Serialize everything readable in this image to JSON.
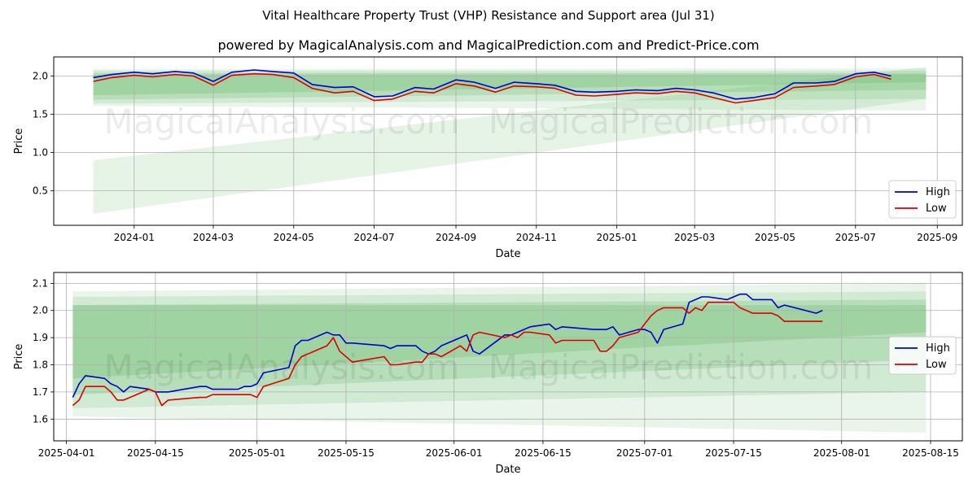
{
  "title": "Vital Healthcare Property Trust (VHP) Resistance and Support area (Jul 31)",
  "subtitle": "powered by MagicalAnalysis.com and MagicalPrediction.com and Predict-Price.com",
  "watermarks": [
    "MagicalAnalysis.com",
    "MagicalPrediction.com"
  ],
  "colors": {
    "high": "#0000cc",
    "low": "#dd0000",
    "band": "#4caf50",
    "grid": "#b0b0b0"
  },
  "chart_data": [
    {
      "type": "line",
      "xlabel": "Date",
      "ylabel": "Price",
      "x_ticks": [
        "2024-01",
        "2024-03",
        "2024-05",
        "2024-07",
        "2024-09",
        "2024-11",
        "2025-01",
        "2025-03",
        "2025-05",
        "2025-07",
        "2025-09"
      ],
      "y_ticks": [
        "0.5",
        "1.0",
        "1.5",
        "2.0"
      ],
      "xlim": [
        "2023-11-01",
        "2025-09-20"
      ],
      "ylim": [
        0.05,
        2.25
      ],
      "grid": true,
      "legend": "bottom-right",
      "series": [
        {
          "name": "High",
          "color": "#0000cc",
          "x": [
            "2023-12-01",
            "2023-12-15",
            "2024-01-01",
            "2024-01-15",
            "2024-02-01",
            "2024-02-15",
            "2024-03-01",
            "2024-03-15",
            "2024-04-01",
            "2024-04-15",
            "2024-05-01",
            "2024-05-15",
            "2024-06-01",
            "2024-06-15",
            "2024-07-01",
            "2024-07-15",
            "2024-08-01",
            "2024-08-15",
            "2024-09-01",
            "2024-09-15",
            "2024-10-01",
            "2024-10-15",
            "2024-11-01",
            "2024-11-15",
            "2024-12-01",
            "2024-12-15",
            "2025-01-01",
            "2025-01-15",
            "2025-02-01",
            "2025-02-15",
            "2025-03-01",
            "2025-03-15",
            "2025-04-01",
            "2025-04-15",
            "2025-05-01",
            "2025-05-15",
            "2025-06-01",
            "2025-06-15",
            "2025-07-01",
            "2025-07-15",
            "2025-07-28"
          ],
          "values": [
            1.98,
            2.02,
            2.05,
            2.03,
            2.06,
            2.04,
            1.93,
            2.05,
            2.08,
            2.06,
            2.04,
            1.89,
            1.85,
            1.86,
            1.73,
            1.74,
            1.85,
            1.83,
            1.95,
            1.92,
            1.84,
            1.92,
            1.9,
            1.88,
            1.8,
            1.79,
            1.8,
            1.82,
            1.81,
            1.84,
            1.82,
            1.78,
            1.7,
            1.72,
            1.77,
            1.91,
            1.91,
            1.93,
            2.03,
            2.05,
            2.0
          ]
        },
        {
          "name": "Low",
          "color": "#dd0000",
          "x": [
            "2023-12-01",
            "2023-12-15",
            "2024-01-01",
            "2024-01-15",
            "2024-02-01",
            "2024-02-15",
            "2024-03-01",
            "2024-03-15",
            "2024-04-01",
            "2024-04-15",
            "2024-05-01",
            "2024-05-15",
            "2024-06-01",
            "2024-06-15",
            "2024-07-01",
            "2024-07-15",
            "2024-08-01",
            "2024-08-15",
            "2024-09-01",
            "2024-09-15",
            "2024-10-01",
            "2024-10-15",
            "2024-11-01",
            "2024-11-15",
            "2024-12-01",
            "2024-12-15",
            "2025-01-01",
            "2025-01-15",
            "2025-02-01",
            "2025-02-15",
            "2025-03-01",
            "2025-03-15",
            "2025-04-01",
            "2025-04-15",
            "2025-05-01",
            "2025-05-15",
            "2025-06-01",
            "2025-06-15",
            "2025-07-01",
            "2025-07-15",
            "2025-07-28"
          ],
          "values": [
            1.93,
            1.98,
            2.01,
            1.99,
            2.02,
            2.0,
            1.88,
            2.01,
            2.03,
            2.02,
            1.98,
            1.84,
            1.78,
            1.8,
            1.68,
            1.7,
            1.8,
            1.78,
            1.9,
            1.87,
            1.79,
            1.87,
            1.86,
            1.84,
            1.75,
            1.74,
            1.76,
            1.78,
            1.77,
            1.8,
            1.78,
            1.72,
            1.65,
            1.68,
            1.72,
            1.85,
            1.87,
            1.89,
            1.99,
            2.02,
            1.96
          ]
        }
      ]
    },
    {
      "type": "line",
      "xlabel": "Date",
      "ylabel": "Price",
      "x_ticks": [
        "2025-04-01",
        "2025-04-15",
        "2025-05-01",
        "2025-05-15",
        "2025-06-01",
        "2025-06-15",
        "2025-07-01",
        "2025-07-15",
        "2025-08-01",
        "2025-08-15"
      ],
      "y_ticks": [
        "1.6",
        "1.7",
        "1.8",
        "1.9",
        "2.0",
        "2.1"
      ],
      "xlim": [
        "2025-03-30",
        "2025-08-20"
      ],
      "ylim": [
        1.52,
        2.14
      ],
      "grid": true,
      "legend": "center-right",
      "series": [
        {
          "name": "High",
          "color": "#0000cc",
          "x": [
            "2025-04-02",
            "2025-04-03",
            "2025-04-04",
            "2025-04-07",
            "2025-04-08",
            "2025-04-09",
            "2025-04-10",
            "2025-04-11",
            "2025-04-14",
            "2025-04-15",
            "2025-04-16",
            "2025-04-17",
            "2025-04-22",
            "2025-04-23",
            "2025-04-24",
            "2025-04-28",
            "2025-04-29",
            "2025-04-30",
            "2025-05-01",
            "2025-05-02",
            "2025-05-06",
            "2025-05-07",
            "2025-05-08",
            "2025-05-09",
            "2025-05-12",
            "2025-05-13",
            "2025-05-14",
            "2025-05-15",
            "2025-05-16",
            "2025-05-21",
            "2025-05-22",
            "2025-05-23",
            "2025-05-26",
            "2025-05-27",
            "2025-05-28",
            "2025-05-29",
            "2025-05-30",
            "2025-06-02",
            "2025-06-03",
            "2025-06-04",
            "2025-06-05",
            "2025-06-09",
            "2025-06-10",
            "2025-06-11",
            "2025-06-12",
            "2025-06-13",
            "2025-06-16",
            "2025-06-17",
            "2025-06-18",
            "2025-06-23",
            "2025-06-24",
            "2025-06-25",
            "2025-06-26",
            "2025-06-27",
            "2025-06-30",
            "2025-07-01",
            "2025-07-02",
            "2025-07-03",
            "2025-07-04",
            "2025-07-07",
            "2025-07-08",
            "2025-07-09",
            "2025-07-10",
            "2025-07-11",
            "2025-07-14",
            "2025-07-15",
            "2025-07-16",
            "2025-07-17",
            "2025-07-18",
            "2025-07-21",
            "2025-07-22",
            "2025-07-23",
            "2025-07-28",
            "2025-07-29"
          ],
          "values": [
            1.68,
            1.73,
            1.76,
            1.75,
            1.73,
            1.72,
            1.7,
            1.72,
            1.71,
            1.7,
            1.7,
            1.7,
            1.72,
            1.72,
            1.71,
            1.71,
            1.72,
            1.72,
            1.73,
            1.77,
            1.79,
            1.87,
            1.89,
            1.89,
            1.92,
            1.91,
            1.91,
            1.88,
            1.88,
            1.87,
            1.86,
            1.87,
            1.87,
            1.85,
            1.84,
            1.85,
            1.87,
            1.9,
            1.91,
            1.85,
            1.84,
            1.91,
            1.91,
            1.92,
            1.93,
            1.94,
            1.95,
            1.93,
            1.94,
            1.93,
            1.93,
            1.93,
            1.94,
            1.91,
            1.93,
            1.93,
            1.92,
            1.88,
            1.93,
            1.95,
            2.03,
            2.04,
            2.05,
            2.05,
            2.04,
            2.05,
            2.06,
            2.06,
            2.04,
            2.04,
            2.01,
            2.02,
            1.99,
            2.0
          ]
        },
        {
          "name": "Low",
          "color": "#dd0000",
          "x": [
            "2025-04-02",
            "2025-04-03",
            "2025-04-04",
            "2025-04-07",
            "2025-04-08",
            "2025-04-09",
            "2025-04-10",
            "2025-04-11",
            "2025-04-14",
            "2025-04-15",
            "2025-04-16",
            "2025-04-17",
            "2025-04-22",
            "2025-04-23",
            "2025-04-24",
            "2025-04-28",
            "2025-04-29",
            "2025-04-30",
            "2025-05-01",
            "2025-05-02",
            "2025-05-06",
            "2025-05-07",
            "2025-05-08",
            "2025-05-09",
            "2025-05-12",
            "2025-05-13",
            "2025-05-14",
            "2025-05-15",
            "2025-05-16",
            "2025-05-21",
            "2025-05-22",
            "2025-05-23",
            "2025-05-26",
            "2025-05-27",
            "2025-05-28",
            "2025-05-29",
            "2025-05-30",
            "2025-06-02",
            "2025-06-03",
            "2025-06-04",
            "2025-06-05",
            "2025-06-09",
            "2025-06-10",
            "2025-06-11",
            "2025-06-12",
            "2025-06-13",
            "2025-06-16",
            "2025-06-17",
            "2025-06-18",
            "2025-06-23",
            "2025-06-24",
            "2025-06-25",
            "2025-06-26",
            "2025-06-27",
            "2025-06-30",
            "2025-07-01",
            "2025-07-02",
            "2025-07-03",
            "2025-07-04",
            "2025-07-07",
            "2025-07-08",
            "2025-07-09",
            "2025-07-10",
            "2025-07-11",
            "2025-07-14",
            "2025-07-15",
            "2025-07-16",
            "2025-07-17",
            "2025-07-18",
            "2025-07-21",
            "2025-07-22",
            "2025-07-23",
            "2025-07-28",
            "2025-07-29"
          ],
          "values": [
            1.65,
            1.67,
            1.72,
            1.72,
            1.7,
            1.67,
            1.67,
            1.68,
            1.71,
            1.7,
            1.65,
            1.67,
            1.68,
            1.68,
            1.69,
            1.69,
            1.69,
            1.69,
            1.68,
            1.72,
            1.75,
            1.8,
            1.83,
            1.84,
            1.87,
            1.9,
            1.85,
            1.83,
            1.81,
            1.83,
            1.8,
            1.8,
            1.81,
            1.81,
            1.84,
            1.84,
            1.83,
            1.87,
            1.85,
            1.91,
            1.92,
            1.9,
            1.91,
            1.9,
            1.92,
            1.92,
            1.91,
            1.88,
            1.89,
            1.89,
            1.85,
            1.85,
            1.87,
            1.9,
            1.92,
            1.95,
            1.98,
            2.0,
            2.01,
            2.01,
            1.99,
            2.01,
            2.0,
            2.03,
            2.03,
            2.03,
            2.01,
            2.0,
            1.99,
            1.99,
            1.98,
            1.96,
            1.96,
            1.96
          ]
        }
      ]
    }
  ],
  "legend_labels": [
    "High",
    "Low"
  ]
}
